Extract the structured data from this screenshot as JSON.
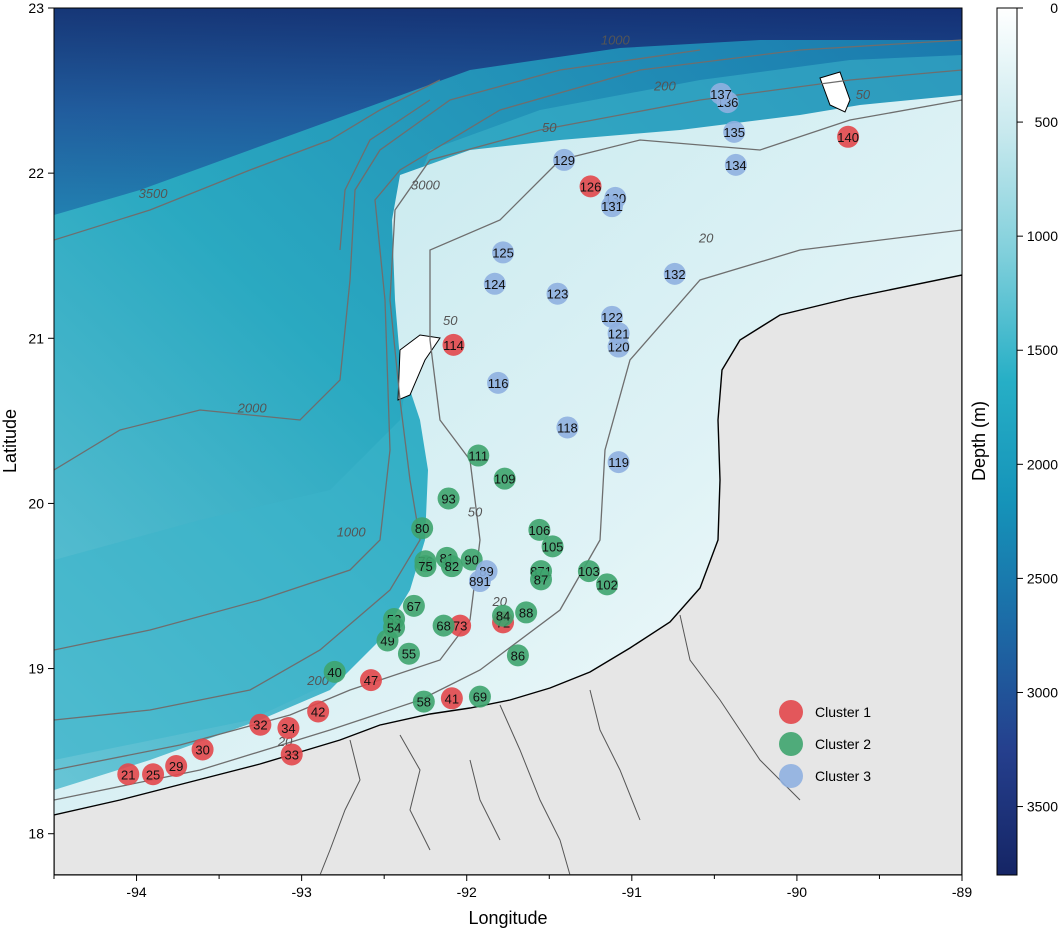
{
  "map": {
    "xlabel": "Longitude",
    "ylabel": "Latitude",
    "xlim": [
      -94.5,
      -89
    ],
    "ylim": [
      17.75,
      23
    ],
    "x_ticks": [
      -94,
      -93,
      -92,
      -91,
      -90,
      -89
    ],
    "y_ticks": [
      18,
      19,
      20,
      21,
      22,
      23
    ],
    "land_color": "#e6e6e6",
    "coastline_color": "#000000",
    "contour_color": "#6e6e6e"
  },
  "colorbar": {
    "label": "Depth (m)",
    "ticks": [
      0,
      500,
      1000,
      1500,
      2000,
      2500,
      3000,
      3500
    ],
    "range": [
      0,
      3800
    ],
    "gradient": [
      "#ffffff",
      "#c8e9ee",
      "#7fcfdb",
      "#27afc6",
      "#1593b9",
      "#1c6aa6",
      "#253f8d",
      "#152565"
    ]
  },
  "contour_labels": [
    {
      "text": "20",
      "lon": -91.8,
      "lat": 19.38
    },
    {
      "text": "20",
      "lon": -90.55,
      "lat": 21.58
    },
    {
      "text": "20",
      "lon": -93.1,
      "lat": 18.53
    },
    {
      "text": "50",
      "lon": -92.1,
      "lat": 21.08
    },
    {
      "text": "50",
      "lon": -91.5,
      "lat": 22.25
    },
    {
      "text": "50",
      "lon": -91.95,
      "lat": 19.92
    },
    {
      "text": "50",
      "lon": -89.6,
      "lat": 22.45
    },
    {
      "text": "200",
      "lon": -92.9,
      "lat": 18.9
    },
    {
      "text": "200",
      "lon": -90.8,
      "lat": 22.5
    },
    {
      "text": "1000",
      "lon": -92.7,
      "lat": 19.8
    },
    {
      "text": "1000",
      "lon": -91.1,
      "lat": 22.78
    },
    {
      "text": "2000",
      "lon": -93.3,
      "lat": 20.55
    },
    {
      "text": "3000",
      "lon": -92.25,
      "lat": 21.9
    },
    {
      "text": "3500",
      "lon": -93.9,
      "lat": 21.85
    }
  ],
  "stations": [
    {
      "id": "21",
      "lon": -94.05,
      "lat": 18.36,
      "cluster": 1
    },
    {
      "id": "25",
      "lon": -93.9,
      "lat": 18.36,
      "cluster": 1
    },
    {
      "id": "29",
      "lon": -93.76,
      "lat": 18.41,
      "cluster": 1
    },
    {
      "id": "30",
      "lon": -93.6,
      "lat": 18.51,
      "cluster": 1
    },
    {
      "id": "32",
      "lon": -93.25,
      "lat": 18.66,
      "cluster": 1
    },
    {
      "id": "34",
      "lon": -93.08,
      "lat": 18.64,
      "cluster": 1
    },
    {
      "id": "33",
      "lon": -93.06,
      "lat": 18.48,
      "cluster": 1
    },
    {
      "id": "42",
      "lon": -92.9,
      "lat": 18.74,
      "cluster": 1
    },
    {
      "id": "47",
      "lon": -92.58,
      "lat": 18.93,
      "cluster": 1
    },
    {
      "id": "41",
      "lon": -92.09,
      "lat": 18.82,
      "cluster": 1
    },
    {
      "id": "73",
      "lon": -92.04,
      "lat": 19.26,
      "cluster": 1
    },
    {
      "id": "72",
      "lon": -91.78,
      "lat": 19.28,
      "cluster": 1
    },
    {
      "id": "114",
      "lon": -92.08,
      "lat": 20.96,
      "cluster": 1
    },
    {
      "id": "126",
      "lon": -91.25,
      "lat": 21.92,
      "cluster": 1
    },
    {
      "id": "140",
      "lon": -89.69,
      "lat": 22.22,
      "cluster": 1
    },
    {
      "id": "40",
      "lon": -92.8,
      "lat": 18.98,
      "cluster": 2
    },
    {
      "id": "49",
      "lon": -92.48,
      "lat": 19.17,
      "cluster": 2
    },
    {
      "id": "55",
      "lon": -92.35,
      "lat": 19.09,
      "cluster": 2
    },
    {
      "id": "53",
      "lon": -92.44,
      "lat": 19.3,
      "cluster": 2
    },
    {
      "id": "54",
      "lon": -92.44,
      "lat": 19.25,
      "cluster": 2
    },
    {
      "id": "58",
      "lon": -92.26,
      "lat": 18.8,
      "cluster": 2
    },
    {
      "id": "67",
      "lon": -92.32,
      "lat": 19.38,
      "cluster": 2
    },
    {
      "id": "68",
      "lon": -92.14,
      "lat": 19.26,
      "cluster": 2
    },
    {
      "id": "69",
      "lon": -91.92,
      "lat": 18.83,
      "cluster": 2
    },
    {
      "id": "84",
      "lon": -91.78,
      "lat": 19.32,
      "cluster": 2
    },
    {
      "id": "88",
      "lon": -91.64,
      "lat": 19.34,
      "cluster": 2
    },
    {
      "id": "86",
      "lon": -91.69,
      "lat": 19.08,
      "cluster": 2
    },
    {
      "id": "76",
      "lon": -92.25,
      "lat": 19.65,
      "cluster": 2
    },
    {
      "id": "75",
      "lon": -92.25,
      "lat": 19.62,
      "cluster": 2
    },
    {
      "id": "81",
      "lon": -92.12,
      "lat": 19.67,
      "cluster": 2
    },
    {
      "id": "82",
      "lon": -92.09,
      "lat": 19.62,
      "cluster": 2
    },
    {
      "id": "90",
      "lon": -91.97,
      "lat": 19.66,
      "cluster": 2
    },
    {
      "id": "80",
      "lon": -92.27,
      "lat": 19.85,
      "cluster": 2
    },
    {
      "id": "93",
      "lon": -92.11,
      "lat": 20.03,
      "cluster": 2
    },
    {
      "id": "111",
      "lon": -91.93,
      "lat": 20.29,
      "cluster": 2
    },
    {
      "id": "109",
      "lon": -91.77,
      "lat": 20.15,
      "cluster": 2
    },
    {
      "id": "106",
      "lon": -91.56,
      "lat": 19.84,
      "cluster": 2
    },
    {
      "id": "105",
      "lon": -91.48,
      "lat": 19.74,
      "cluster": 2
    },
    {
      "id": "871",
      "lon": -91.55,
      "lat": 19.59,
      "cluster": 2
    },
    {
      "id": "87",
      "lon": -91.55,
      "lat": 19.54,
      "cluster": 2
    },
    {
      "id": "103",
      "lon": -91.26,
      "lat": 19.59,
      "cluster": 2
    },
    {
      "id": "102",
      "lon": -91.15,
      "lat": 19.51,
      "cluster": 2
    },
    {
      "id": "89",
      "lon": -91.88,
      "lat": 19.59,
      "cluster": 3
    },
    {
      "id": "891",
      "lon": -91.92,
      "lat": 19.53,
      "cluster": 3
    },
    {
      "id": "116",
      "lon": -91.81,
      "lat": 20.73,
      "cluster": 3
    },
    {
      "id": "118",
      "lon": -91.39,
      "lat": 20.46,
      "cluster": 3
    },
    {
      "id": "119",
      "lon": -91.08,
      "lat": 20.25,
      "cluster": 3
    },
    {
      "id": "120",
      "lon": -91.08,
      "lat": 20.95,
      "cluster": 3
    },
    {
      "id": "121",
      "lon": -91.08,
      "lat": 21.03,
      "cluster": 3
    },
    {
      "id": "122",
      "lon": -91.12,
      "lat": 21.13,
      "cluster": 3
    },
    {
      "id": "123",
      "lon": -91.45,
      "lat": 21.27,
      "cluster": 3
    },
    {
      "id": "124",
      "lon": -91.83,
      "lat": 21.33,
      "cluster": 3
    },
    {
      "id": "125",
      "lon": -91.78,
      "lat": 21.52,
      "cluster": 3
    },
    {
      "id": "129",
      "lon": -91.41,
      "lat": 22.08,
      "cluster": 3
    },
    {
      "id": "130",
      "lon": -91.1,
      "lat": 21.85,
      "cluster": 3
    },
    {
      "id": "131",
      "lon": -91.12,
      "lat": 21.8,
      "cluster": 3
    },
    {
      "id": "132",
      "lon": -90.74,
      "lat": 21.39,
      "cluster": 3
    },
    {
      "id": "134",
      "lon": -90.37,
      "lat": 22.05,
      "cluster": 3
    },
    {
      "id": "135",
      "lon": -90.38,
      "lat": 22.25,
      "cluster": 3
    },
    {
      "id": "136",
      "lon": -90.42,
      "lat": 22.43,
      "cluster": 3
    },
    {
      "id": "137",
      "lon": -90.46,
      "lat": 22.48,
      "cluster": 3
    }
  ],
  "legend": {
    "position": "bottom-right",
    "items": [
      {
        "label": "Cluster 1",
        "color": "#e2474b"
      },
      {
        "label": "Cluster 2",
        "color": "#3ea46e"
      },
      {
        "label": "Cluster 3",
        "color": "#8fb0e0"
      }
    ]
  }
}
